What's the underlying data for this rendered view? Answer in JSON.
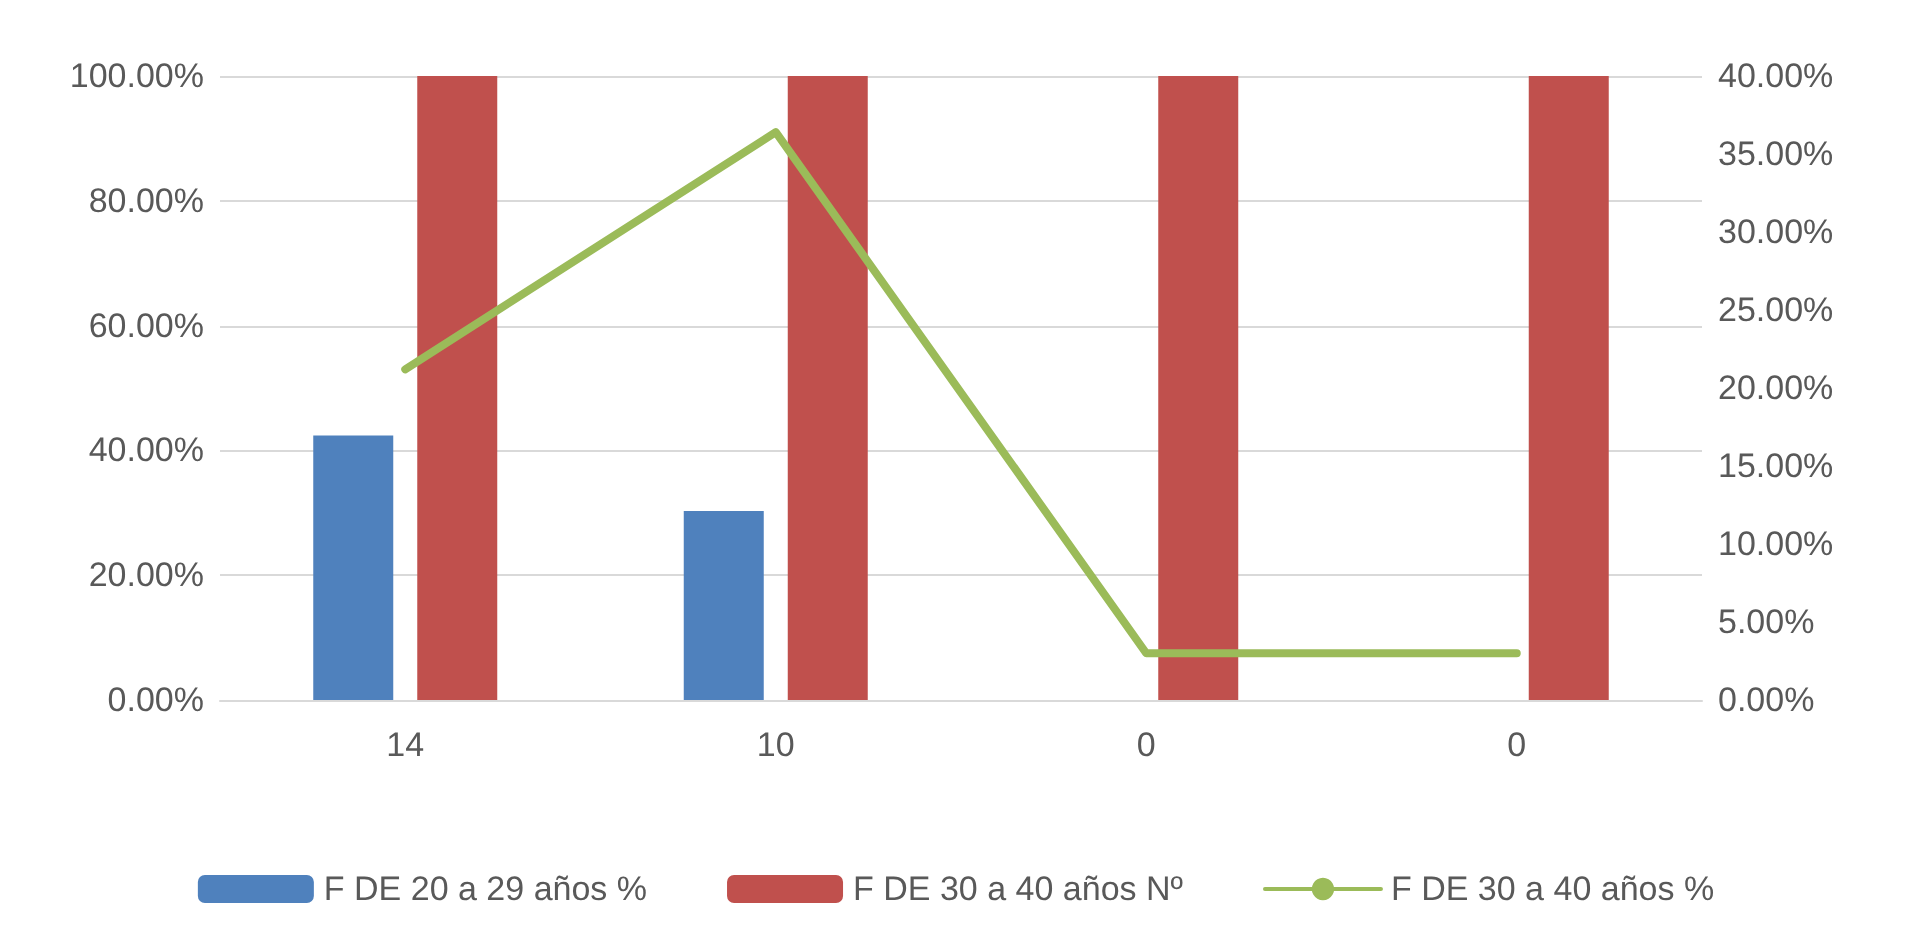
{
  "chart_data": {
    "type": "bar",
    "categories": [
      "14",
      "10",
      "0",
      "0"
    ],
    "series": [
      {
        "name": "F DE 20 a 29 años %",
        "color": "#4f81bd",
        "values": [
          42.4,
          30.3,
          0,
          0
        ]
      },
      {
        "name": "F DE 30 a 40 años Nº",
        "color": "#c0504d",
        "values": [
          100,
          100,
          100,
          100
        ]
      },
      {
        "name": "F DE 30 a 40 años %",
        "color": "#9bbb59",
        "type": "line",
        "axis": "y2",
        "values": [
          21.2,
          36.4,
          3.0,
          3.0
        ]
      }
    ],
    "ylim": [
      0,
      100
    ],
    "yticks": [
      {
        "value": 0,
        "label": "0.00%"
      },
      {
        "value": 20,
        "label": "20.00%"
      },
      {
        "value": 40,
        "label": "40.00%"
      },
      {
        "value": 60,
        "label": "60.00%"
      },
      {
        "value": 80,
        "label": "80.00%"
      },
      {
        "value": 100,
        "label": "100.00%"
      }
    ],
    "y2lim": [
      0,
      40
    ],
    "y2ticks": [
      {
        "value": 0,
        "label": "0.00%"
      },
      {
        "value": 5,
        "label": "5.00%"
      },
      {
        "value": 10,
        "label": "10.00%"
      },
      {
        "value": 15,
        "label": "15.00%"
      },
      {
        "value": 20,
        "label": "20.00%"
      },
      {
        "value": 25,
        "label": "25.00%"
      },
      {
        "value": 30,
        "label": "30.00%"
      },
      {
        "value": 35,
        "label": "35.00%"
      },
      {
        "value": 40,
        "label": "40.00%"
      }
    ],
    "grid": "y",
    "legend": "bottom",
    "marker": "none",
    "line_style": "solid"
  }
}
